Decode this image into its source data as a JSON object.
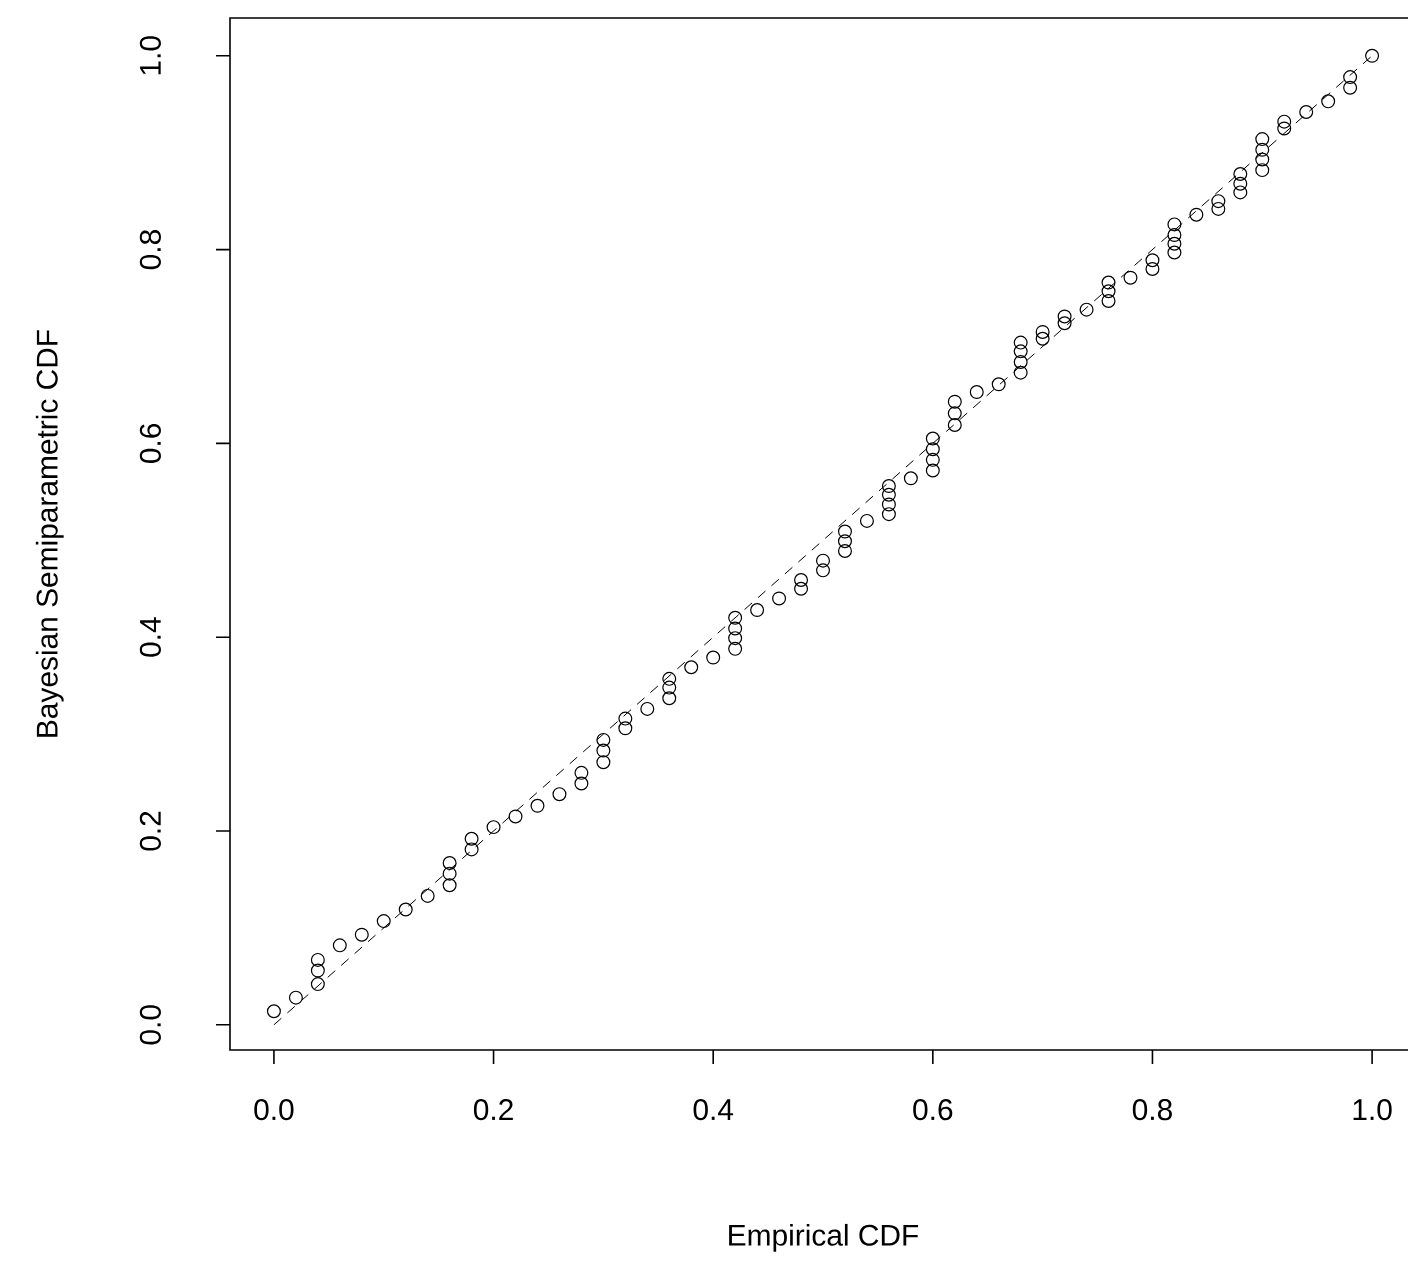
{
  "chart_data": {
    "type": "scatter",
    "xlabel": "Empirical CDF",
    "ylabel": "Bayesian Semiparametric CDF",
    "xlim": [
      -0.04,
      1.04
    ],
    "ylim": [
      -0.026,
      1.039
    ],
    "xticks": [
      {
        "value": 0,
        "label": "0.0"
      },
      {
        "value": 0.2,
        "label": "0.2"
      },
      {
        "value": 0.4,
        "label": "0.4"
      },
      {
        "value": 0.6,
        "label": "0.6"
      },
      {
        "value": 0.8,
        "label": "0.8"
      },
      {
        "value": 1,
        "label": "1.0"
      }
    ],
    "yticks": [
      {
        "value": 0,
        "label": "0.0"
      },
      {
        "value": 0.2,
        "label": "0.2"
      },
      {
        "value": 0.4,
        "label": "0.4"
      },
      {
        "value": 0.6,
        "label": "0.6"
      },
      {
        "value": 0.8,
        "label": "0.8"
      },
      {
        "value": 1,
        "label": "1.0"
      }
    ],
    "grid": false,
    "marker": "circle",
    "series": [
      {
        "color": "#000000",
        "x": [
          0.0,
          0.02,
          0.04,
          0.04,
          0.04,
          0.06,
          0.08,
          0.1,
          0.12,
          0.14,
          0.16,
          0.16,
          0.16,
          0.18,
          0.18,
          0.2,
          0.22,
          0.24,
          0.26,
          0.28,
          0.28,
          0.3,
          0.3,
          0.3,
          0.32,
          0.32,
          0.34,
          0.36,
          0.36,
          0.36,
          0.38,
          0.4,
          0.42,
          0.42,
          0.42,
          0.42,
          0.44,
          0.46,
          0.48,
          0.48,
          0.5,
          0.5,
          0.52,
          0.52,
          0.52,
          0.54,
          0.56,
          0.56,
          0.56,
          0.56,
          0.58,
          0.6,
          0.6,
          0.6,
          0.6,
          0.62,
          0.62,
          0.62,
          0.64,
          0.66,
          0.68,
          0.68,
          0.68,
          0.68,
          0.7,
          0.7,
          0.72,
          0.72,
          0.74,
          0.76,
          0.76,
          0.76,
          0.78,
          0.8,
          0.8,
          0.82,
          0.82,
          0.82,
          0.82,
          0.84,
          0.86,
          0.86,
          0.88,
          0.88,
          0.88,
          0.9,
          0.9,
          0.9,
          0.9,
          0.92,
          0.92,
          0.94,
          0.96,
          0.98,
          0.98,
          1.0
        ],
        "values": [
          0.014,
          0.028,
          0.042,
          0.056,
          0.067,
          0.082,
          0.093,
          0.107,
          0.119,
          0.133,
          0.144,
          0.156,
          0.167,
          0.181,
          0.192,
          0.204,
          0.215,
          0.226,
          0.238,
          0.249,
          0.26,
          0.271,
          0.283,
          0.294,
          0.306,
          0.316,
          0.326,
          0.337,
          0.348,
          0.357,
          0.369,
          0.379,
          0.388,
          0.399,
          0.409,
          0.42,
          0.428,
          0.44,
          0.45,
          0.459,
          0.469,
          0.479,
          0.489,
          0.499,
          0.509,
          0.52,
          0.527,
          0.537,
          0.547,
          0.556,
          0.564,
          0.572,
          0.583,
          0.594,
          0.605,
          0.619,
          0.631,
          0.643,
          0.653,
          0.661,
          0.673,
          0.684,
          0.695,
          0.704,
          0.708,
          0.715,
          0.724,
          0.731,
          0.738,
          0.747,
          0.757,
          0.766,
          0.771,
          0.78,
          0.789,
          0.797,
          0.806,
          0.815,
          0.826,
          0.836,
          0.842,
          0.85,
          0.859,
          0.868,
          0.878,
          0.882,
          0.893,
          0.903,
          0.914,
          0.925,
          0.932,
          0.942,
          0.953,
          0.967,
          0.978,
          1.0
        ]
      },
      {
        "type": "line",
        "color": "#000000",
        "marker": "none",
        "line_style": "dashed",
        "x": [
          0,
          1
        ],
        "values": [
          0,
          1
        ]
      }
    ]
  }
}
